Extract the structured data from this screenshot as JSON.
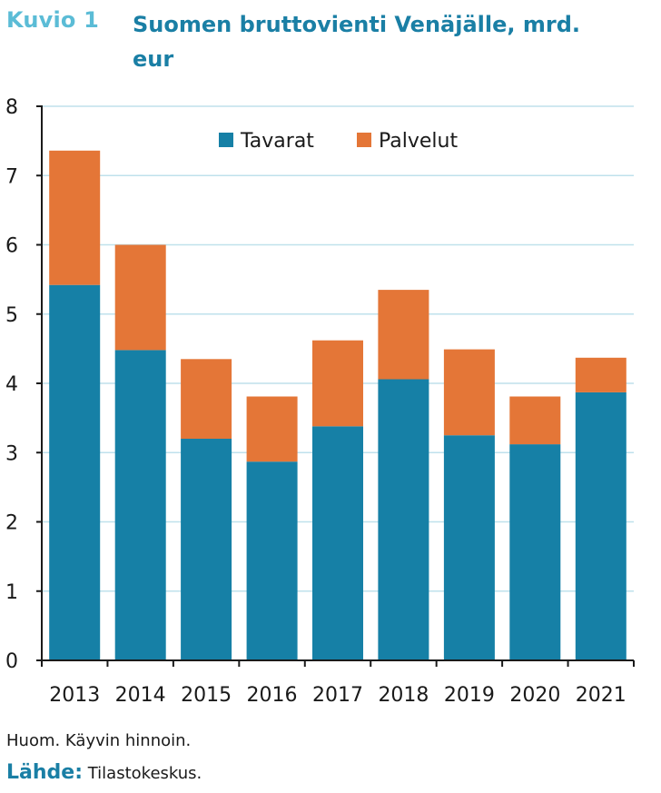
{
  "header": {
    "figure_label": "Kuvio 1",
    "title": "Suomen bruttovienti Venäjälle, mrd. eur"
  },
  "footer": {
    "note": "Huom. Käyvin hinnoin.",
    "source_label": "Lähde:",
    "source_text": "Tilastokeskus."
  },
  "colors": {
    "tavarat": "#1680a6",
    "palvelut": "#e47637",
    "grid": "#bfe1ec",
    "axis": "#1a1a1a"
  },
  "chart_data": {
    "type": "bar",
    "stacked": true,
    "title": "Suomen bruttovienti Venäjälle, mrd. eur",
    "xlabel": "",
    "ylabel": "",
    "categories": [
      "2013",
      "2014",
      "2015",
      "2016",
      "2017",
      "2018",
      "2019",
      "2020",
      "2021"
    ],
    "series": [
      {
        "name": "Tavarat",
        "values": [
          5.42,
          4.48,
          3.2,
          2.87,
          3.38,
          4.06,
          3.25,
          3.12,
          3.87
        ]
      },
      {
        "name": "Palvelut",
        "values": [
          1.94,
          1.52,
          1.15,
          0.94,
          1.24,
          1.29,
          1.24,
          0.69,
          0.5
        ]
      }
    ],
    "ylim": [
      0,
      8
    ],
    "yticks": [
      "0",
      "1",
      "2",
      "3",
      "4",
      "5",
      "6",
      "7",
      "8"
    ],
    "grid": true,
    "legend": "top-center"
  }
}
